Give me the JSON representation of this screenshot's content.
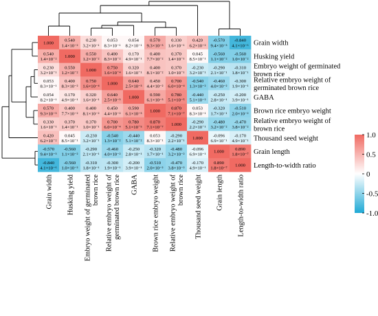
{
  "chart_data": {
    "type": "heatmap",
    "title": "",
    "variables": [
      {
        "row_label": [
          "Grain width"
        ],
        "col_label": [
          "Grain width"
        ]
      },
      {
        "row_label": [
          "Husking yield"
        ],
        "col_label": [
          "Husking yield"
        ]
      },
      {
        "row_label": [
          "Embryo weight of germinated",
          "brown rice"
        ],
        "col_label": [
          "Embryo weight of germinated",
          "brown rice"
        ]
      },
      {
        "row_label": [
          "Relative embryo weight of",
          "germinated brown rice"
        ],
        "col_label": [
          "Relative embryo weight of",
          "germinated brown rice"
        ]
      },
      {
        "row_label": [
          "GABA"
        ],
        "col_label": [
          "GABA"
        ]
      },
      {
        "row_label": [
          "Brown rice embryo weight"
        ],
        "col_label": [
          "Brown rice embryo weight"
        ]
      },
      {
        "row_label": [
          "Relative embryo weight of",
          "brown rice"
        ],
        "col_label": [
          "Relative embryo weight of",
          "brown rice"
        ]
      },
      {
        "row_label": [
          "Thousand seed weight"
        ],
        "col_label": [
          "Thousand seed weight"
        ]
      },
      {
        "row_label": [
          "Grain length"
        ],
        "col_label": [
          "Grain length"
        ]
      },
      {
        "row_label": [
          "Length-to-width ratio"
        ],
        "col_label": [
          "Length-to-width ratio"
        ]
      }
    ],
    "correlation": [
      [
        1.0,
        0.54,
        0.23,
        0.053,
        0.054,
        0.57,
        0.33,
        0.42,
        -0.57,
        -0.84
      ],
      [
        0.54,
        1.0,
        0.55,
        0.4,
        0.17,
        0.4,
        0.37,
        0.045,
        -0.56,
        -0.56
      ],
      [
        0.23,
        0.55,
        1.0,
        0.75,
        0.32,
        0.4,
        0.37,
        -0.23,
        -0.29,
        -0.31
      ],
      [
        0.053,
        0.4,
        0.75,
        1.0,
        0.64,
        0.45,
        0.7,
        -0.54,
        -0.46,
        -0.3
      ],
      [
        0.054,
        0.17,
        0.32,
        0.64,
        1.0,
        0.59,
        0.78,
        -0.44,
        -0.25,
        -0.2
      ],
      [
        0.57,
        0.4,
        0.4,
        0.45,
        0.59,
        1.0,
        0.87,
        0.053,
        -0.32,
        -0.51
      ],
      [
        0.33,
        0.37,
        0.37,
        0.7,
        0.78,
        0.87,
        1.0,
        -0.29,
        -0.48,
        -0.47
      ],
      [
        0.42,
        0.045,
        -0.23,
        -0.54,
        -0.44,
        0.053,
        -0.29,
        1.0,
        -0.096,
        -0.17
      ],
      [
        -0.57,
        -0.56,
        -0.29,
        -0.46,
        -0.25,
        -0.32,
        -0.48,
        -0.096,
        1.0,
        0.89
      ],
      [
        -0.84,
        -0.56,
        -0.31,
        -0.3,
        -0.2,
        -0.51,
        -0.47,
        -0.17,
        0.89,
        1.0
      ]
    ],
    "p_values": [
      [
        "",
        "1.4×10⁻²",
        "3.2×10⁻¹",
        "8.3×10⁻¹",
        "8.2×10⁻¹",
        "9.3×10⁻³",
        "1.6×10⁻¹",
        "6.2×10⁻²",
        "9.4×10⁻³",
        "4.1×10⁻⁶"
      ],
      [
        "1.4×10⁻²",
        "",
        "1.2×10⁻²",
        "8.3×10⁻²",
        "4.9×10⁻¹",
        "7.7×10⁻²",
        "1.4×10⁻¹",
        "8.5×10⁻¹",
        "1.1×10⁻²",
        "1.0×10⁻²"
      ],
      [
        "3.2×10⁻¹",
        "1.2×10⁻²",
        "",
        "1.6×10⁻⁴",
        "1.6×10⁻¹",
        "8.1×10⁻²",
        "1.0×10⁻¹",
        "3.2×10⁻¹",
        "2.1×10⁻¹",
        "1.8×10⁻¹"
      ],
      [
        "8.3×10⁻¹",
        "8.3×10⁻²",
        "1.6×10⁻⁴",
        "",
        "2.5×10⁻³",
        "4.4×10⁻²",
        "6.0×10⁻⁴",
        "1.3×10⁻²",
        "4.0×10⁻²",
        "1.9×10⁻¹"
      ],
      [
        "8.2×10⁻¹",
        "4.9×10⁻¹",
        "1.6×10⁻¹",
        "2.5×10⁻³",
        "",
        "6.1×10⁻³",
        "5.1×10⁻⁵",
        "5.1×10⁻²",
        "2.8×10⁻¹",
        "3.9×10⁻¹"
      ],
      [
        "9.3×10⁻³",
        "7.7×10⁻²",
        "8.1×10⁻²",
        "4.4×10⁻²",
        "6.1×10⁻³",
        "",
        "7.1×10⁻⁷",
        "8.3×10⁻¹",
        "1.7×10⁻¹",
        "2.0×10⁻²"
      ],
      [
        "1.6×10⁻¹",
        "1.4×10⁻¹",
        "1.0×10⁻¹",
        "6.0×10⁻⁴",
        "5.1×10⁻⁵",
        "7.1×10⁻⁷",
        "",
        "2.2×10⁻¹",
        "3.2×10⁻²",
        "3.8×10⁻²"
      ],
      [
        "6.2×10⁻²",
        "8.5×10⁻¹",
        "3.2×10⁻¹",
        "1.3×10⁻²",
        "5.1×10⁻²",
        "8.3×10⁻¹",
        "2.2×10⁻¹",
        "",
        "6.9×10⁻¹",
        "4.9×10⁻¹"
      ],
      [
        "9.4×10⁻³",
        "1.1×10⁻²",
        "2.1×10⁻¹",
        "4.0×10⁻²",
        "2.8×10⁻¹",
        "1.7×10⁻¹",
        "3.2×10⁻²",
        "6.9×10⁻¹",
        "",
        "1.8×10⁻⁷"
      ],
      [
        "4.1×10⁻⁶",
        "1.0×10⁻²",
        "1.8×10⁻¹",
        "1.9×10⁻¹",
        "3.9×10⁻¹",
        "2.0×10⁻²",
        "3.8×10⁻²",
        "4.9×10⁻¹",
        "1.8×10⁻⁷",
        ""
      ]
    ],
    "diagonal_label": "1.000",
    "colorbar": {
      "ticks": [
        1.0,
        0.5,
        0,
        -0.5,
        -1.0
      ],
      "tick_labels": [
        "1.0",
        "0.5",
        "0",
        "-0.5",
        "-1.0"
      ],
      "range": [
        -1.0,
        1.0
      ],
      "colors": {
        "positive": "#f06a62",
        "neutral": "#ffffff",
        "negative": "#1fa9d5"
      }
    },
    "dendrogram": "hierarchical clustering tree drawn on the top (columns) and on the left (rows)",
    "grid": false,
    "legend_position": "right"
  }
}
